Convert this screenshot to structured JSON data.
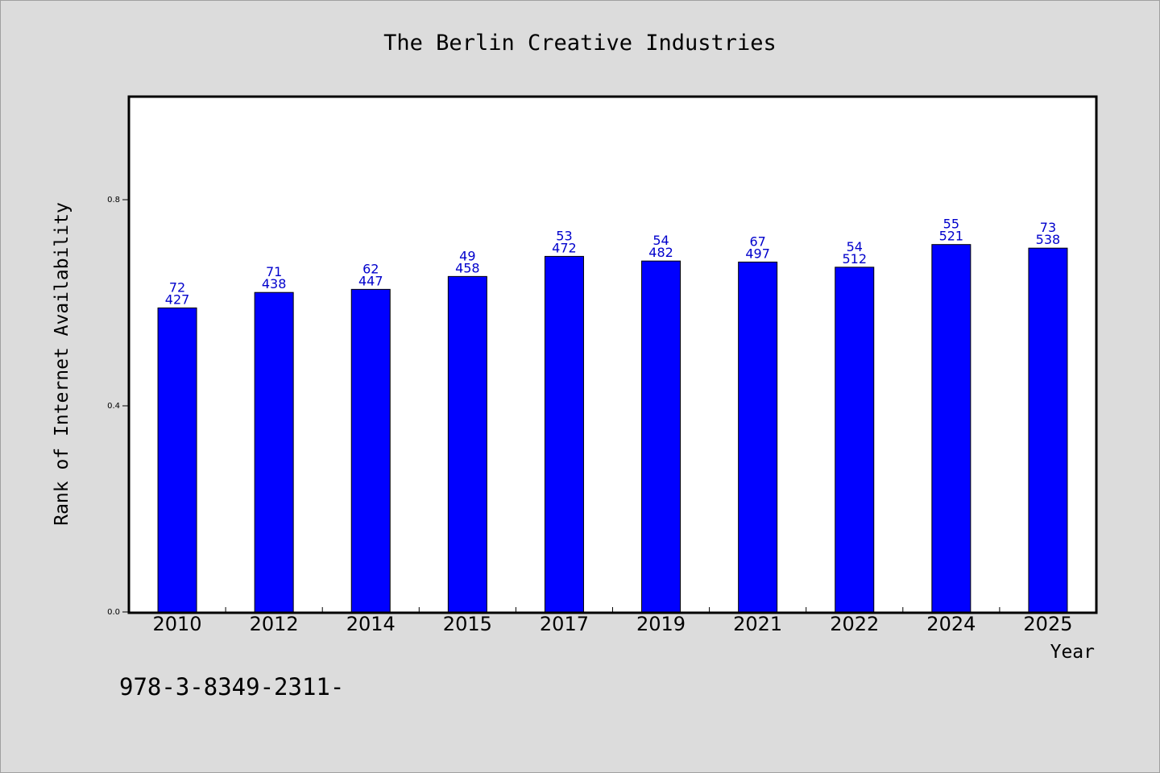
{
  "chart_data": {
    "type": "bar",
    "title": "The Berlin Creative Industries",
    "xlabel": "Year",
    "ylabel": "Rank of Internet Availability",
    "categories": [
      "2010",
      "2012",
      "2014",
      "2015",
      "2017",
      "2019",
      "2021",
      "2022",
      "2024",
      "2025"
    ],
    "values": [
      0.59,
      0.62,
      0.626,
      0.651,
      0.69,
      0.681,
      0.679,
      0.669,
      0.713,
      0.706
    ],
    "labels_top": [
      "72",
      "71",
      "62",
      "49",
      "53",
      "54",
      "67",
      "54",
      "55",
      "73"
    ],
    "labels_bottom": [
      "427",
      "438",
      "447",
      "458",
      "472",
      "482",
      "497",
      "512",
      "521",
      "538"
    ],
    "yticks": [
      "0.0",
      "0.4",
      "0.8"
    ],
    "ytick_values": [
      0.0,
      0.4,
      0.8
    ],
    "ylim": [
      0,
      1.0
    ],
    "grid": false,
    "bar_color": "#0000ff",
    "label_color": "#0000cc"
  },
  "footnote": "978-3-8349-2311-"
}
